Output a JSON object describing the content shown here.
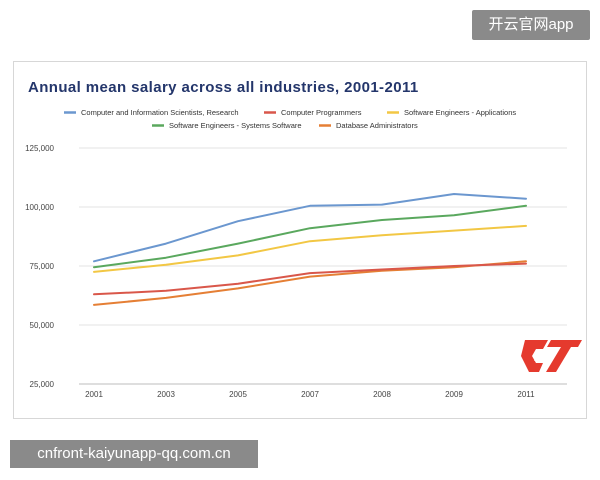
{
  "watermark_top": "开云官网app",
  "watermark_bottom": "cnfront-kaiyunapp-qq.com.cn",
  "chart_data": {
    "type": "line",
    "title": "Annual mean salary across all industries, 2001-2011",
    "xlabel": "",
    "ylabel": "",
    "categories": [
      "2001",
      "2003",
      "2005",
      "2007",
      "2008",
      "2009",
      "2011"
    ],
    "ylim": [
      25000,
      125000
    ],
    "y_ticks": [
      25000,
      50000,
      75000,
      100000,
      125000
    ],
    "y_tick_labels": [
      "25,000",
      "50,000",
      "75,000",
      "100,000",
      "125,000"
    ],
    "grid": true,
    "legend_position": "top",
    "series": [
      {
        "name": "Computer and Information Scientists, Research",
        "color": "#6b97cf",
        "values": [
          77000,
          84500,
          94000,
          100500,
          101000,
          105500,
          103500
        ]
      },
      {
        "name": "Computer Programmers",
        "color": "#d9574a",
        "values": [
          63000,
          64500,
          67500,
          72000,
          73500,
          75000,
          76000
        ]
      },
      {
        "name": "Software Engineers - Applications",
        "color": "#f2c744",
        "values": [
          72500,
          75500,
          79500,
          85500,
          88000,
          90000,
          92000
        ]
      },
      {
        "name": "Software Engineers - Systems Software",
        "color": "#5aa85e",
        "values": [
          74500,
          78500,
          84500,
          91000,
          94500,
          96500,
          100500
        ]
      },
      {
        "name": "Database Administrators",
        "color": "#e57f35",
        "values": [
          58500,
          61500,
          65500,
          70500,
          73000,
          74500,
          77000
        ]
      }
    ]
  }
}
